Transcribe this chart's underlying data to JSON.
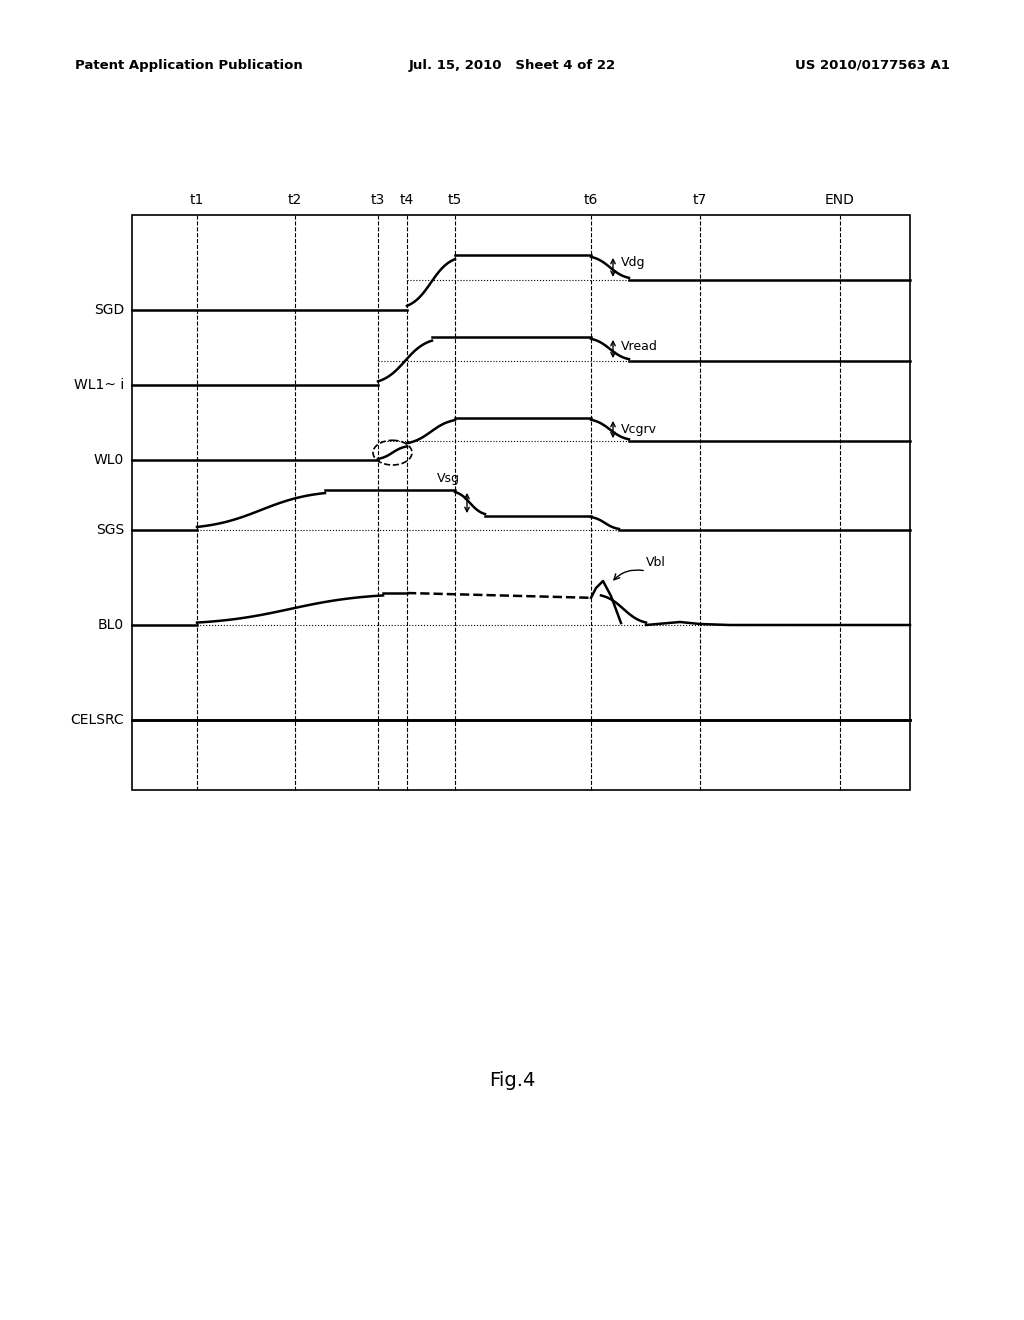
{
  "header_left": "Patent Application Publication",
  "header_mid": "Jul. 15, 2010   Sheet 4 of 22",
  "header_right": "US 2010/0177563 A1",
  "time_labels": [
    "t1",
    "t2",
    "t3",
    "t4",
    "t5",
    "t6",
    "t7",
    "END"
  ],
  "signal_labels": [
    "SGD",
    "WL1~ i",
    "WL0",
    "SGS",
    "BL0",
    "CELSRC"
  ],
  "voltage_labels": [
    "Vdg",
    "Vread",
    "Vcgrv",
    "Vsg",
    "Vbl"
  ],
  "fig_label": "Fig.4",
  "background_color": "#ffffff"
}
